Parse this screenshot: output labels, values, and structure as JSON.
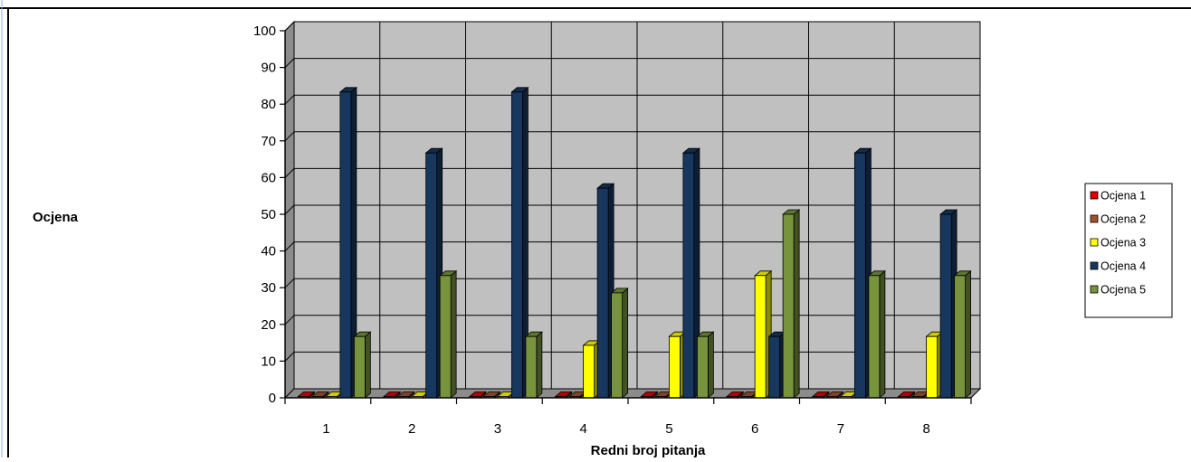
{
  "chart_data": {
    "type": "bar",
    "xlabel": "Redni broj pitanja",
    "ylabel": "Ocjena",
    "ylim": [
      0,
      100
    ],
    "yticks": [
      0,
      10,
      20,
      30,
      40,
      50,
      60,
      70,
      80,
      90,
      100
    ],
    "categories": [
      "1",
      "2",
      "3",
      "4",
      "5",
      "6",
      "7",
      "8"
    ],
    "grid": true,
    "legend_position": "right",
    "series": [
      {
        "name": "Ocjena 1",
        "color": "#e00000",
        "values": [
          0,
          0,
          0,
          0,
          0,
          0,
          0,
          0
        ]
      },
      {
        "name": "Ocjena 2",
        "color": "#a0522d",
        "values": [
          0,
          0,
          0,
          0,
          0,
          0,
          0,
          0
        ]
      },
      {
        "name": "Ocjena 3",
        "color": "#ffff00",
        "values": [
          0,
          0,
          0,
          14.3,
          16.7,
          33.3,
          0,
          16.7
        ]
      },
      {
        "name": "Ocjena 4",
        "color": "#17375e",
        "values": [
          83.3,
          66.7,
          83.3,
          57.1,
          66.7,
          16.7,
          66.7,
          50
        ]
      },
      {
        "name": "Ocjena 5",
        "color": "#77933c",
        "values": [
          16.7,
          33.3,
          16.7,
          28.6,
          16.7,
          50,
          33.3,
          33.3
        ]
      }
    ]
  }
}
